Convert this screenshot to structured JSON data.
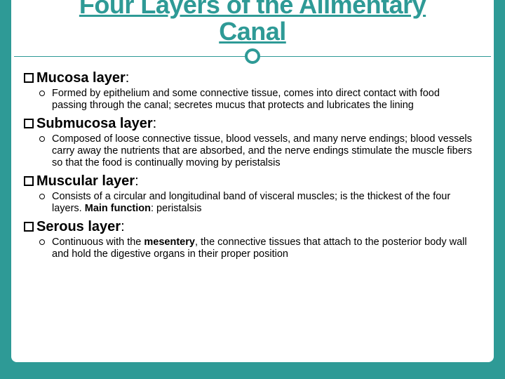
{
  "colors": {
    "teal": "#2e9a96",
    "white": "#ffffff",
    "black": "#000000"
  },
  "typography": {
    "title_fontsize": 36,
    "heading_fontsize": 20,
    "body_fontsize": 14.5,
    "font_family": "Arial"
  },
  "title_line1": "Four Layers of the Alimentary",
  "title_line2": "Canal",
  "sections": [
    {
      "heading_bold": "Mucosa layer",
      "heading_rest": ":",
      "body": "Formed by epithelium and some connective tissue, comes into direct contact with food passing through the canal; secretes mucus that protects and lubricates the lining"
    },
    {
      "heading_bold": "Submucosa layer",
      "heading_rest": ":",
      "body": "Composed of loose connective tissue, blood vessels, and many nerve endings; blood vessels carry away the nutrients that are absorbed, and the nerve endings stimulate the muscle fibers so that the food is continually moving by peristalsis"
    },
    {
      "heading_bold": "Muscular layer",
      "heading_rest": ":",
      "body_pre": "Consists of a circular and longitudinal band of visceral muscles; is the thickest of the four layers. ",
      "body_bold": "Main function",
      "body_post": ": peristalsis"
    },
    {
      "heading_bold": "Serous layer",
      "heading_rest": ":",
      "body_pre": "Continuous with the ",
      "body_bold": "mesentery",
      "body_post": ", the connective tissues that attach to the posterior body wall and hold the digestive organs in their proper position"
    }
  ]
}
